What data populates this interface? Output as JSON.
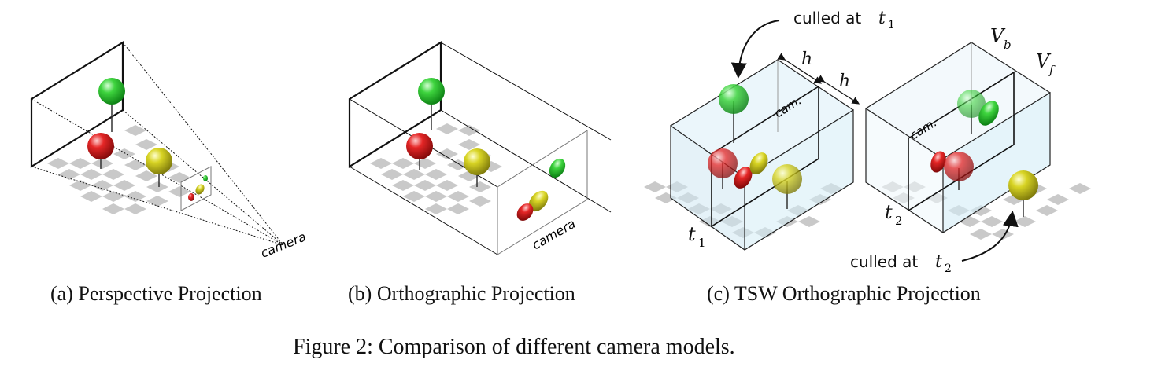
{
  "figure_caption": "Figure 2: Comparison of different camera models.",
  "panels": [
    {
      "caption": "(a) Perspective Projection",
      "camera_label": "camera"
    },
    {
      "caption": "(b) Orthographic Projection",
      "camera_label": "camera"
    },
    {
      "caption": "(c) TSW Orthographic Projection",
      "cam_label": "cam.",
      "culled_t1": "culled at",
      "culled_t2": "culled at",
      "t_sub_1": "1",
      "t_sub_2": "2",
      "t_symbol": "t",
      "h_symbol": "h",
      "V_symbol": "V",
      "V_b_sub": "b",
      "V_f_sub": "f"
    }
  ],
  "colors": {
    "green_sphere": "#22c02a",
    "red_sphere": "#d61a1a",
    "yellow_sphere": "#c8c41a",
    "checker": "#c9c9c9",
    "glass": "#cfe8f3"
  }
}
